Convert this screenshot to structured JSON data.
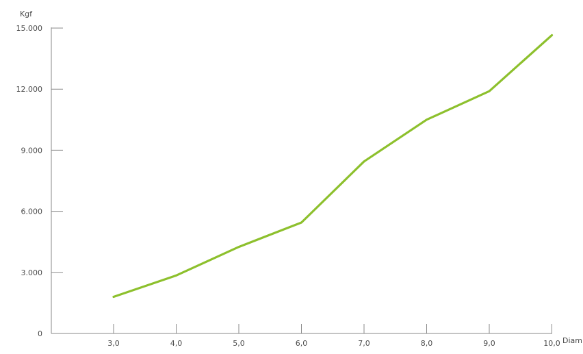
{
  "chart_data": {
    "type": "line",
    "title": "",
    "xlabel": "Diam",
    "ylabel": "Kgf",
    "categories": [
      "3,0",
      "4,0",
      "5,0",
      "6,0",
      "7,0",
      "8,0",
      "9,0",
      "10,0"
    ],
    "y_ticks": [
      "0",
      "3.000",
      "6.000",
      "9.000",
      "12.000",
      "15.000"
    ],
    "y_tick_values": [
      0,
      3000,
      6000,
      9000,
      12000,
      15000
    ],
    "ylim": [
      0,
      15000
    ],
    "grid": false,
    "legend": "none",
    "series": [
      {
        "values": [
          1800,
          2850,
          4250,
          5450,
          8450,
          10500,
          11900,
          14650
        ],
        "color": "#8dc02d"
      }
    ],
    "colors": {
      "axis": "#8a8a8a",
      "text": "#4a4a4a"
    }
  }
}
